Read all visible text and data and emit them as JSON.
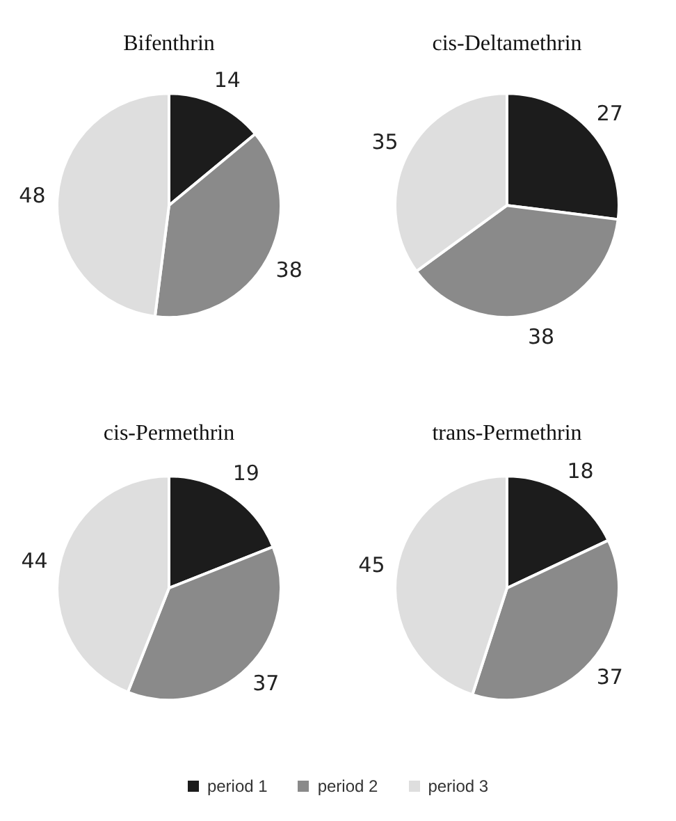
{
  "chart_data": [
    {
      "type": "pie",
      "title": "Bifenthrin",
      "categories": [
        "period 1",
        "period 2",
        "period 3"
      ],
      "values": [
        14,
        38,
        48
      ],
      "colors": [
        "#1c1c1c",
        "#8a8a8a",
        "#dedede"
      ],
      "data_labels": true,
      "legend": "bottom"
    },
    {
      "type": "pie",
      "title": "cis-Deltamethrin",
      "categories": [
        null,
        null,
        null
      ],
      "values": [
        27,
        38,
        35
      ],
      "colors": [
        "#1c1c1c",
        "#8a8a8a",
        "#dedede"
      ],
      "data_labels": true
    },
    {
      "type": "pie",
      "title": "cis-Permethrin",
      "categories": [
        null,
        null,
        null
      ],
      "values": [
        19,
        37,
        44
      ],
      "colors": [
        "#1c1c1c",
        "#8a8a8a",
        "#dedede"
      ],
      "data_labels": true
    },
    {
      "type": "pie",
      "title": "trans-Permethrin",
      "categories": [
        null,
        null,
        null
      ],
      "values": [
        18,
        37,
        45
      ],
      "colors": [
        "#1c1c1c",
        "#8a8a8a",
        "#dedede"
      ],
      "data_labels": true
    }
  ]
}
